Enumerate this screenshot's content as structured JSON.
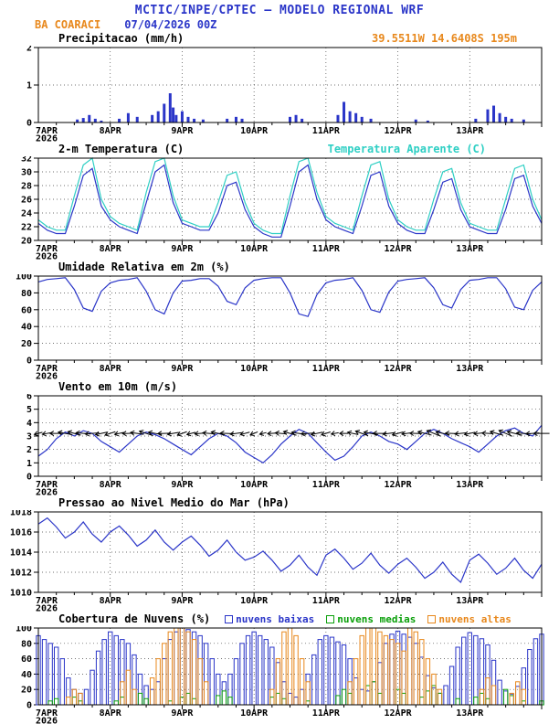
{
  "header": {
    "title": "MCTIC/INPE/CPTEC — MODELO REGIONAL WRF",
    "station": "BA COARACI",
    "run": "07/04/2026 00Z",
    "location": "39.5511W 14.6408S 195m"
  },
  "colors": {
    "blue": "#2a35c8",
    "cyan": "#2ecfc4",
    "orange": "#e8881c",
    "green": "#0aa00a",
    "black": "#000000",
    "grid": "#444444"
  },
  "x_axis": {
    "range_hours": [
      0,
      168
    ],
    "tick_hours": [
      0,
      24,
      48,
      72,
      96,
      120,
      144
    ],
    "tick_labels": [
      "7APR",
      "8APR",
      "9APR",
      "10APR",
      "11APR",
      "12APR",
      "13APR"
    ],
    "year_label": "2026"
  },
  "chart_data": [
    {
      "id": "precipitacao",
      "title": "Precipitacao (mm/h)",
      "type": "bar",
      "ylim": [
        0,
        2
      ],
      "yticks": [
        0,
        1,
        2
      ],
      "series": [
        {
          "name": "precipitacao",
          "color": "blue",
          "hours": [
            13,
            15,
            17,
            19,
            21,
            27,
            30,
            33,
            38,
            40,
            42,
            44,
            45,
            46,
            48,
            50,
            52,
            55,
            63,
            66,
            68,
            84,
            86,
            88,
            100,
            102,
            104,
            106,
            108,
            111,
            126,
            130,
            146,
            150,
            152,
            154,
            156,
            158,
            162
          ],
          "values": [
            0.08,
            0.12,
            0.2,
            0.1,
            0.05,
            0.1,
            0.25,
            0.15,
            0.2,
            0.3,
            0.5,
            0.78,
            0.4,
            0.2,
            0.3,
            0.15,
            0.1,
            0.08,
            0.1,
            0.15,
            0.1,
            0.15,
            0.2,
            0.1,
            0.2,
            0.55,
            0.3,
            0.25,
            0.15,
            0.1,
            0.08,
            0.05,
            0.1,
            0.35,
            0.45,
            0.25,
            0.15,
            0.1,
            0.08
          ]
        }
      ]
    },
    {
      "id": "temperatura",
      "title": "2-m Temperatura (C)",
      "secondary_title": "Temperatura Aparente (C)",
      "type": "line",
      "ylim": [
        20,
        32
      ],
      "yticks": [
        20,
        22,
        24,
        26,
        28,
        30,
        32
      ],
      "step_hours": 3,
      "series": [
        {
          "name": "temperatura_2m",
          "color": "blue",
          "values": [
            22.5,
            21.5,
            21.0,
            21.0,
            25.0,
            29.5,
            30.5,
            25.0,
            23.0,
            22.0,
            21.5,
            21.0,
            25.5,
            30.0,
            31.0,
            25.5,
            22.5,
            22.0,
            21.5,
            21.5,
            24.0,
            28.0,
            28.5,
            24.5,
            22.0,
            21.0,
            20.5,
            20.5,
            25.0,
            30.0,
            31.0,
            26.0,
            23.0,
            22.0,
            21.5,
            21.0,
            25.0,
            29.5,
            30.0,
            25.0,
            22.5,
            21.5,
            21.0,
            21.0,
            24.5,
            28.5,
            29.0,
            24.5,
            22.0,
            21.5,
            21.0,
            21.0,
            24.5,
            29.0,
            29.5,
            25.0,
            22.5
          ]
        },
        {
          "name": "temperatura_aparente",
          "color": "cyan",
          "values": [
            23.0,
            22.0,
            21.5,
            21.5,
            26.5,
            31.0,
            32.0,
            26.0,
            23.5,
            22.5,
            22.0,
            21.5,
            27.0,
            31.5,
            32.0,
            26.5,
            23.0,
            22.5,
            22.0,
            22.0,
            25.5,
            29.5,
            30.0,
            25.5,
            22.5,
            21.5,
            21.0,
            21.0,
            26.5,
            31.5,
            32.0,
            27.0,
            23.5,
            22.5,
            22.0,
            21.5,
            26.5,
            31.0,
            31.5,
            26.0,
            23.0,
            22.0,
            21.5,
            21.5,
            26.0,
            30.0,
            30.5,
            25.5,
            22.5,
            22.0,
            21.5,
            21.5,
            26.0,
            30.5,
            31.0,
            26.0,
            23.0
          ]
        }
      ]
    },
    {
      "id": "umidade",
      "title": "Umidade Relativa em 2m (%)",
      "type": "line",
      "ylim": [
        0,
        100
      ],
      "yticks": [
        0,
        20,
        40,
        60,
        80,
        100
      ],
      "step_hours": 3,
      "series": [
        {
          "name": "umidade_relativa",
          "color": "blue",
          "values": [
            93,
            96,
            97,
            98,
            84,
            62,
            58,
            82,
            92,
            95,
            96,
            98,
            82,
            60,
            55,
            80,
            94,
            95,
            97,
            97,
            88,
            70,
            66,
            86,
            95,
            97,
            98,
            98,
            80,
            55,
            52,
            78,
            92,
            95,
            96,
            98,
            83,
            60,
            57,
            81,
            94,
            96,
            97,
            98,
            86,
            66,
            62,
            84,
            95,
            96,
            98,
            98,
            85,
            63,
            60,
            83,
            93
          ]
        }
      ]
    },
    {
      "id": "vento",
      "title": "Vento em 10m (m/s)",
      "type": "line",
      "ylim": [
        0,
        6
      ],
      "yticks": [
        0,
        1,
        2,
        3,
        4,
        5,
        6
      ],
      "step_hours": 3,
      "series": [
        {
          "name": "velocidade_vento",
          "color": "blue",
          "values": [
            1.5,
            2.0,
            2.8,
            3.3,
            3.0,
            3.4,
            3.2,
            2.6,
            2.2,
            1.8,
            2.4,
            3.0,
            3.3,
            3.1,
            2.8,
            2.4,
            2.0,
            1.6,
            2.2,
            2.8,
            3.2,
            3.0,
            2.5,
            1.8,
            1.4,
            1.0,
            1.6,
            2.4,
            3.0,
            3.5,
            3.2,
            2.5,
            1.8,
            1.2,
            1.5,
            2.2,
            3.0,
            3.3,
            3.0,
            2.6,
            2.4,
            2.0,
            2.6,
            3.2,
            3.5,
            3.2,
            2.8,
            2.5,
            2.2,
            1.8,
            2.4,
            3.0,
            3.4,
            3.6,
            3.2,
            3.0,
            3.8
          ]
        }
      ],
      "arrows": {
        "name": "direcao_vento",
        "step_hours": 3,
        "anchor_y": 3.2,
        "directions_deg": [
          255,
          260,
          270,
          280,
          285,
          275,
          265,
          258,
          252,
          258,
          268,
          278,
          288,
          280,
          268,
          260,
          250,
          255,
          265,
          275,
          282,
          272,
          262,
          255,
          248,
          256,
          266,
          276,
          286,
          278,
          266,
          258,
          252,
          260,
          270,
          282,
          290,
          280,
          270,
          262,
          255,
          262,
          272,
          284,
          292,
          282,
          272,
          264,
          258,
          264,
          274,
          286,
          294,
          284,
          274,
          266,
          270
        ]
      }
    },
    {
      "id": "pressao",
      "title": "Pressao ao Nivel Medio do Mar (hPa)",
      "type": "line",
      "ylim": [
        1010,
        1018
      ],
      "yticks": [
        1010,
        1012,
        1014,
        1016,
        1018
      ],
      "step_hours": 3,
      "series": [
        {
          "name": "pressao_nivel_mar",
          "color": "blue",
          "values": [
            1016.8,
            1017.4,
            1016.5,
            1015.4,
            1016.0,
            1017.0,
            1015.8,
            1015.0,
            1016.0,
            1016.6,
            1015.7,
            1014.6,
            1015.2,
            1016.2,
            1015.0,
            1014.2,
            1015.0,
            1015.6,
            1014.7,
            1013.6,
            1014.2,
            1015.2,
            1014.0,
            1013.2,
            1013.5,
            1014.1,
            1013.2,
            1012.1,
            1012.7,
            1013.7,
            1012.5,
            1011.7,
            1013.7,
            1014.3,
            1013.4,
            1012.3,
            1012.9,
            1013.9,
            1012.7,
            1011.9,
            1012.8,
            1013.4,
            1012.5,
            1011.4,
            1012.0,
            1013.0,
            1011.8,
            1011.0,
            1013.2,
            1013.8,
            1012.9,
            1011.8,
            1012.4,
            1013.4,
            1012.2,
            1011.4,
            1012.8
          ]
        }
      ]
    },
    {
      "id": "nuvens",
      "title": "Cobertura de Nuvens (%)",
      "type": "bar",
      "ylim": [
        0,
        100
      ],
      "yticks": [
        0,
        20,
        40,
        60,
        80,
        100
      ],
      "step_hours": 2,
      "legend": [
        {
          "label": "nuvens baixas",
          "color": "blue"
        },
        {
          "label": "nuvens medias",
          "color": "green"
        },
        {
          "label": "nuvens altas",
          "color": "orange"
        }
      ],
      "series": [
        {
          "name": "nuvens_baixas",
          "color": "blue",
          "values": [
            90,
            85,
            80,
            75,
            60,
            35,
            20,
            15,
            20,
            45,
            70,
            85,
            95,
            90,
            85,
            80,
            65,
            40,
            25,
            20,
            30,
            60,
            85,
            95,
            100,
            98,
            95,
            90,
            80,
            60,
            40,
            30,
            40,
            60,
            80,
            90,
            95,
            90,
            85,
            75,
            55,
            30,
            15,
            10,
            20,
            40,
            65,
            85,
            90,
            88,
            82,
            78,
            60,
            35,
            20,
            18,
            30,
            55,
            80,
            92,
            96,
            92,
            88,
            80,
            62,
            38,
            22,
            15,
            25,
            50,
            75,
            88,
            94,
            90,
            86,
            78,
            58,
            32,
            18,
            14,
            24,
            48,
            72,
            86,
            92
          ]
        },
        {
          "name": "nuvens_medias",
          "color": "green",
          "values": [
            0,
            0,
            5,
            8,
            0,
            0,
            10,
            5,
            0,
            0,
            0,
            0,
            0,
            5,
            10,
            0,
            0,
            15,
            8,
            0,
            0,
            0,
            5,
            0,
            10,
            15,
            8,
            0,
            0,
            0,
            12,
            18,
            10,
            0,
            0,
            0,
            0,
            0,
            0,
            10,
            15,
            8,
            0,
            0,
            0,
            5,
            0,
            0,
            0,
            0,
            12,
            20,
            15,
            0,
            0,
            25,
            30,
            15,
            0,
            0,
            20,
            15,
            0,
            0,
            10,
            18,
            25,
            15,
            0,
            0,
            8,
            0,
            0,
            10,
            15,
            8,
            0,
            0,
            20,
            12,
            0,
            5,
            0,
            0,
            5
          ]
        },
        {
          "name": "nuvens_altas",
          "color": "orange",
          "values": [
            0,
            0,
            0,
            0,
            0,
            10,
            20,
            15,
            0,
            0,
            0,
            0,
            0,
            0,
            30,
            45,
            20,
            0,
            0,
            35,
            60,
            80,
            95,
            100,
            100,
            95,
            85,
            60,
            30,
            0,
            0,
            0,
            0,
            0,
            0,
            0,
            0,
            0,
            0,
            20,
            60,
            95,
            100,
            90,
            60,
            30,
            0,
            0,
            0,
            0,
            0,
            0,
            30,
            60,
            90,
            100,
            100,
            95,
            90,
            85,
            80,
            70,
            100,
            95,
            85,
            60,
            40,
            20,
            0,
            0,
            0,
            0,
            0,
            0,
            20,
            35,
            25,
            0,
            0,
            15,
            30,
            20,
            0,
            0,
            0
          ]
        }
      ]
    }
  ]
}
